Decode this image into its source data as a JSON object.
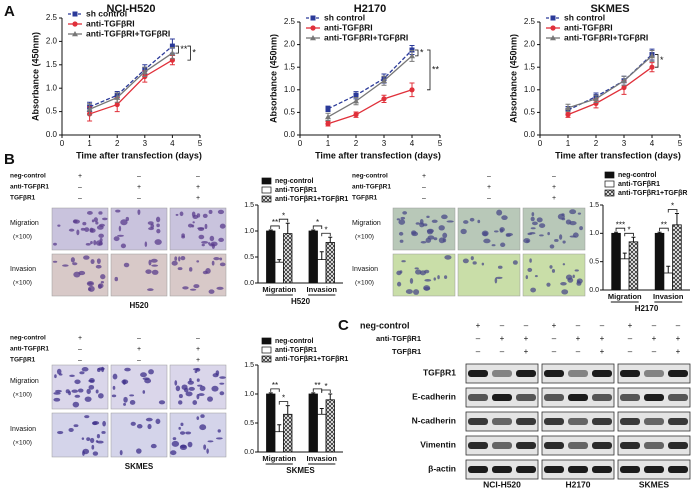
{
  "panel_labels": [
    "A",
    "B",
    "C"
  ],
  "chart_data": [
    {
      "type": "line",
      "title": "NCI-H520",
      "xlabel": "Time after transfection (days)",
      "ylabel": "Absorbance (450nm)",
      "x": [
        1,
        2,
        3,
        4
      ],
      "xlim": [
        0,
        5
      ],
      "xticks": [
        0,
        1,
        2,
        3,
        4,
        5
      ],
      "ylim": [
        0,
        2.5
      ],
      "yticks": [
        {
          "value": 0,
          "label": "0.0"
        },
        0.5,
        {
          "value": 1,
          "label": "1.0"
        },
        1.5,
        {
          "value": 2,
          "label": "2.0"
        },
        2.5
      ],
      "series": [
        {
          "name": "sh control",
          "color": "#2b3a99",
          "line_style": "dashed",
          "marker": "square",
          "values": [
            0.6,
            0.85,
            1.4,
            1.9
          ],
          "errors": [
            0.1,
            0.08,
            0.1,
            0.15
          ]
        },
        {
          "name": "anti-TGFβRI",
          "color": "#e0303a",
          "line_style": "solid",
          "marker": "circle",
          "values": [
            0.45,
            0.65,
            1.25,
            1.6
          ],
          "errors": [
            0.15,
            0.15,
            0.12,
            0.1
          ]
        },
        {
          "name": "anti-TGFβRI+TGFβRI",
          "color": "#777777",
          "line_style": "solid",
          "marker": "triangle",
          "values": [
            0.55,
            0.8,
            1.35,
            1.75
          ],
          "errors": [
            0.12,
            0.1,
            0.1,
            0.12
          ]
        }
      ],
      "annotations": [
        "**",
        "*"
      ]
    },
    {
      "type": "line",
      "title": "H2170",
      "xlabel": "Time after transfection (days)",
      "ylabel": "Absorbance (450nm)",
      "x": [
        1,
        2,
        3,
        4
      ],
      "xlim": [
        0,
        5
      ],
      "xticks": [
        0,
        1,
        2,
        3,
        4,
        5
      ],
      "ylim": [
        0,
        2.5
      ],
      "yticks": [
        {
          "value": 0,
          "label": "0.0"
        },
        0.5,
        {
          "value": 1,
          "label": "1.0"
        },
        1.5,
        {
          "value": 2,
          "label": "2.0"
        },
        2.5
      ],
      "series": [
        {
          "name": "sh control",
          "color": "#2b3a99",
          "line_style": "dashed",
          "marker": "square",
          "values": [
            0.58,
            0.88,
            1.25,
            1.88
          ],
          "errors": [
            0.06,
            0.08,
            0.1,
            0.1
          ]
        },
        {
          "name": "anti-TGFβRI",
          "color": "#e0303a",
          "line_style": "solid",
          "marker": "circle",
          "values": [
            0.25,
            0.45,
            0.8,
            1.0
          ],
          "errors": [
            0.05,
            0.06,
            0.08,
            0.15
          ]
        },
        {
          "name": "anti-TGFβRI+TGFβRI",
          "color": "#777777",
          "line_style": "solid",
          "marker": "triangle",
          "values": [
            0.4,
            0.75,
            1.2,
            1.75
          ],
          "errors": [
            0.08,
            0.08,
            0.1,
            0.12
          ]
        }
      ],
      "annotations": [
        "*",
        "**"
      ]
    },
    {
      "type": "line",
      "title": "SKMES",
      "xlabel": "Time after transfection (days)",
      "ylabel": "Absorbance (450nm)",
      "x": [
        1,
        2,
        3,
        4
      ],
      "xlim": [
        0,
        5
      ],
      "xticks": [
        0,
        1,
        2,
        3,
        4,
        5
      ],
      "ylim": [
        0,
        2.5
      ],
      "yticks": [
        {
          "value": 0,
          "label": "0.0"
        },
        0.5,
        {
          "value": 1,
          "label": "1.0"
        },
        1.5,
        {
          "value": 2,
          "label": "2.0"
        },
        2.5
      ],
      "series": [
        {
          "name": "sh control",
          "color": "#2b3a99",
          "line_style": "dashed",
          "marker": "square",
          "values": [
            0.55,
            0.85,
            1.2,
            1.78
          ],
          "errors": [
            0.08,
            0.08,
            0.1,
            0.12
          ]
        },
        {
          "name": "anti-TGFβRI",
          "color": "#e0303a",
          "line_style": "solid",
          "marker": "circle",
          "values": [
            0.45,
            0.7,
            1.05,
            1.5
          ],
          "errors": [
            0.06,
            0.1,
            0.15,
            0.1
          ]
        },
        {
          "name": "anti-TGFβRI+TGFβRI",
          "color": "#777777",
          "line_style": "solid",
          "marker": "triangle",
          "values": [
            0.6,
            0.8,
            1.2,
            1.75
          ],
          "errors": [
            0.08,
            0.08,
            0.1,
            0.12
          ]
        }
      ],
      "annotations": [
        "*"
      ]
    },
    {
      "type": "bar",
      "xlabel": "H520",
      "categories": [
        "Migration",
        "Invasion"
      ],
      "ylim": [
        0,
        1.5
      ],
      "yticks": [
        {
          "value": 0,
          "label": "0.0"
        },
        0.5,
        {
          "value": 1,
          "label": "1.0"
        },
        1.5
      ],
      "series": [
        {
          "name": "neg-control",
          "color": "#111111",
          "pattern": "solid",
          "values": [
            1.0,
            1.0
          ],
          "errors": [
            0.02,
            0.02
          ]
        },
        {
          "name": "anti-TGFβR1",
          "color": "#ffffff",
          "pattern": "solid",
          "values": [
            0.4,
            0.45
          ],
          "errors": [
            0.05,
            0.15
          ]
        },
        {
          "name": "anti-TGFβR1+TGFβR1",
          "color": "#666666",
          "pattern": "crosshatch",
          "values": [
            0.95,
            0.78
          ],
          "errors": [
            0.2,
            0.1
          ]
        }
      ],
      "annotations": [
        "**",
        "*",
        "*",
        "*"
      ]
    },
    {
      "type": "bar",
      "xlabel": "H2170",
      "categories": [
        "Migration",
        "Invasion"
      ],
      "ylim": [
        0,
        1.5
      ],
      "yticks": [
        {
          "value": 0,
          "label": "0.0"
        },
        0.5,
        {
          "value": 1,
          "label": "1.0"
        },
        1.5
      ],
      "series": [
        {
          "name": "neg-control",
          "color": "#111111",
          "pattern": "solid",
          "values": [
            1.0,
            1.0
          ],
          "errors": [
            0.02,
            0.02
          ]
        },
        {
          "name": "anti-TGFβR1",
          "color": "#ffffff",
          "pattern": "solid",
          "values": [
            0.55,
            0.3
          ],
          "errors": [
            0.1,
            0.12
          ]
        },
        {
          "name": "anti-TGFβR1+TGFβR",
          "color": "#666666",
          "pattern": "crosshatch",
          "values": [
            0.85,
            1.15
          ],
          "errors": [
            0.08,
            0.2
          ]
        }
      ],
      "annotations": [
        "***",
        "*",
        "**",
        "*"
      ]
    },
    {
      "type": "bar",
      "xlabel": "SKMES",
      "categories": [
        "Migration",
        "Invasion"
      ],
      "ylim": [
        0,
        1.5
      ],
      "yticks": [
        {
          "value": 0,
          "label": "0.0"
        },
        0.5,
        {
          "value": 1,
          "label": "1.0"
        },
        1.5
      ],
      "series": [
        {
          "name": "neg-control",
          "color": "#111111",
          "pattern": "solid",
          "values": [
            1.0,
            1.0
          ],
          "errors": [
            0.02,
            0.02
          ]
        },
        {
          "name": "anti-TGFβR1",
          "color": "#ffffff",
          "pattern": "solid",
          "values": [
            0.35,
            0.65
          ],
          "errors": [
            0.12,
            0.1
          ]
        },
        {
          "name": "anti-TGFβR1+TGFβR1",
          "color": "#666666",
          "pattern": "crosshatch",
          "values": [
            0.65,
            0.9
          ],
          "errors": [
            0.15,
            0.1
          ]
        }
      ],
      "annotations": [
        "**",
        "*",
        "**",
        "*"
      ]
    }
  ],
  "micrographs": [
    {
      "conditions": [
        {
          "label": "neg-control",
          "signs": [
            "+",
            "–",
            "–"
          ]
        },
        {
          "label": "anti-TGFβR1",
          "signs": [
            "–",
            "+",
            "+"
          ]
        },
        {
          "label": "TGFβR1",
          "signs": [
            "–",
            "–",
            "+"
          ]
        }
      ],
      "rows": [
        "Migration",
        "Invasion"
      ],
      "magnification": "(×100)",
      "caption": "H520"
    },
    {
      "conditions": [
        {
          "label": "neg-control",
          "signs": [
            "+",
            "–",
            "–"
          ]
        },
        {
          "label": "anti-TGFβR1",
          "signs": [
            "–",
            "+",
            "+"
          ]
        },
        {
          "label": "TGFβR1",
          "signs": [
            "–",
            "–",
            "+"
          ]
        }
      ],
      "rows": [
        "Migration",
        "Invasion"
      ],
      "magnification": "(×100)"
    },
    {
      "conditions": [
        {
          "label": "neg-control",
          "signs": [
            "+",
            "–",
            "–"
          ]
        },
        {
          "label": "anti-TGFβR1",
          "signs": [
            "–",
            "+",
            "+"
          ]
        },
        {
          "label": "TGFβR1",
          "signs": [
            "–",
            "–",
            "+"
          ]
        }
      ],
      "rows": [
        "Migration",
        "Invasion"
      ],
      "magnification": "(×100)",
      "caption": "SKMES"
    }
  ],
  "western_blot": {
    "conditions": [
      {
        "label": "neg-control",
        "signs": [
          "+",
          "–",
          "–",
          "+",
          "–",
          "–",
          "+",
          "–",
          "–"
        ]
      },
      {
        "label": "anti-TGFβR1",
        "signs": [
          "–",
          "+",
          "+",
          "–",
          "+",
          "+",
          "–",
          "+",
          "+"
        ]
      },
      {
        "label": "TGFβR1",
        "signs": [
          "–",
          "–",
          "+",
          "–",
          "–",
          "+",
          "–",
          "–",
          "+"
        ]
      }
    ],
    "proteins": [
      "TGFβR1",
      "E-cadherin",
      "N-cadherin",
      "Vimentin",
      "β-actin"
    ],
    "cell_lines": [
      "NCI-H520",
      "H2170",
      "SKMES"
    ]
  }
}
